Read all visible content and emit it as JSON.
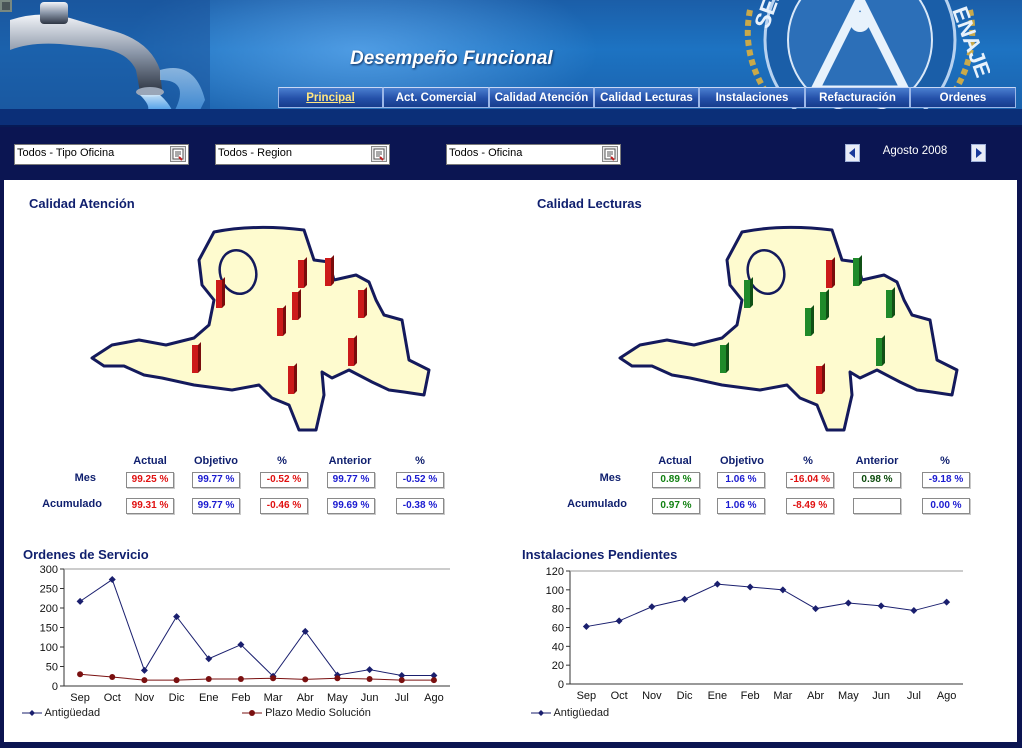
{
  "header": {
    "title": "Desempeño Funcional",
    "logo_text_left": "SERVIC",
    "logo_text_right": "ENAJE"
  },
  "nav": {
    "tabs": [
      {
        "label": "Principal",
        "active": true
      },
      {
        "label": "Act. Comercial",
        "active": false
      },
      {
        "label": "Calidad Atención",
        "active": false
      },
      {
        "label": "Calidad Lecturas",
        "active": false
      },
      {
        "label": "Instalaciones",
        "active": false
      },
      {
        "label": "Refacturación",
        "active": false
      },
      {
        "label": "Ordenes",
        "active": false
      }
    ]
  },
  "filters": {
    "tipo_oficina": "Todos - Tipo Oficina",
    "region": "Todos - Region",
    "oficina": "Todos - Oficina",
    "period": "Agosto 2008"
  },
  "panels": {
    "atencion": {
      "title": "Calidad Atención",
      "headers": [
        "Actual",
        "Objetivo",
        "%",
        "Anterior",
        "%"
      ],
      "rows": [
        {
          "label": "Mes",
          "values": [
            "99.25 %",
            "99.77 %",
            "-0.52 %",
            "99.77 %",
            "-0.52 %"
          ]
        },
        {
          "label": "Acumulado",
          "values": [
            "99.31 %",
            "99.77 %",
            "-0.46 %",
            "99.69 %",
            "-0.38 %"
          ]
        }
      ],
      "value_colors": [
        [
          "#e01010",
          "#1a1ad0",
          "#e01010",
          "#1a1ad0",
          "#1a1ad0"
        ],
        [
          "#e01010",
          "#1a1ad0",
          "#e01010",
          "#1a1ad0",
          "#1a1ad0"
        ]
      ],
      "bar_color": "#cc1a1a",
      "bars": [
        "red",
        "red",
        "red",
        "red",
        "red",
        "red",
        "red",
        "red",
        "red"
      ]
    },
    "lecturas": {
      "title": "Calidad Lecturas",
      "headers": [
        "Actual",
        "Objetivo",
        "%",
        "Anterior",
        "%"
      ],
      "rows": [
        {
          "label": "Mes",
          "values": [
            "0.89 %",
            "1.06 %",
            "-16.04 %",
            "0.98 %",
            "-9.18 %"
          ]
        },
        {
          "label": "Acumulado",
          "values": [
            "0.97 %",
            "1.06 %",
            "-8.49 %",
            "",
            "0.00 %"
          ]
        }
      ],
      "value_colors": [
        [
          "#108010",
          "#1a1ad0",
          "#e01010",
          "#0a4a0a",
          "#1a1ad0"
        ],
        [
          "#108010",
          "#1a1ad0",
          "#e01010",
          "#1a1ad0",
          "#1a1ad0"
        ]
      ],
      "bars": [
        "green",
        "red",
        "green",
        "green",
        "green",
        "green",
        "green",
        "red",
        "green"
      ]
    }
  },
  "charts": {
    "ordenes": {
      "title": "Ordenes de Servicio",
      "legend": [
        "Antigüedad",
        "Plazo Medio Solución"
      ]
    },
    "instalaciones": {
      "title": "Instalaciones Pendientes",
      "legend": [
        "Antigüedad"
      ]
    }
  },
  "chart_data": [
    {
      "type": "line",
      "title": "Ordenes de Servicio",
      "categories": [
        "Sep",
        "Oct",
        "Nov",
        "Dic",
        "Ene",
        "Feb",
        "Mar",
        "Abr",
        "May",
        "Jun",
        "Jul",
        "Ago"
      ],
      "ylim": [
        0,
        300
      ],
      "yticks": [
        0,
        50,
        100,
        150,
        200,
        250,
        300
      ],
      "series": [
        {
          "name": "Antigüedad",
          "color": "#1a1f6e",
          "values": [
            217,
            273,
            40,
            178,
            70,
            106,
            25,
            140,
            28,
            42,
            27,
            27
          ]
        },
        {
          "name": "Plazo Medio Solución",
          "color": "#7a1010",
          "values": [
            30,
            23,
            15,
            15,
            18,
            18,
            20,
            17,
            20,
            18,
            15,
            15
          ]
        }
      ],
      "legend_position": "bottom",
      "grid": false
    },
    {
      "type": "line",
      "title": "Instalaciones Pendientes",
      "categories": [
        "Sep",
        "Oct",
        "Nov",
        "Dic",
        "Ene",
        "Feb",
        "Mar",
        "Abr",
        "May",
        "Jun",
        "Jul",
        "Ago"
      ],
      "ylim": [
        0,
        120
      ],
      "yticks": [
        0,
        20,
        40,
        60,
        80,
        100,
        120
      ],
      "series": [
        {
          "name": "Antigüedad",
          "color": "#1a1f6e",
          "values": [
            61,
            67,
            82,
            90,
            106,
            103,
            100,
            80,
            86,
            83,
            78,
            87
          ]
        }
      ],
      "legend_position": "bottom",
      "grid": false
    }
  ]
}
